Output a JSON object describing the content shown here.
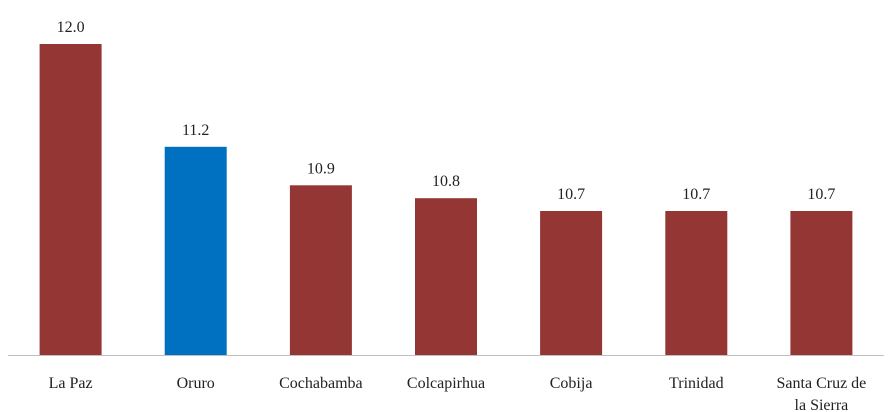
{
  "chart_data": {
    "type": "bar",
    "title": "",
    "xlabel": "",
    "ylabel": "",
    "categories": [
      "La Paz",
      "Oruro",
      "Cochabamba",
      "Colcapirhua",
      "Cobija",
      "Trinidad",
      "Santa Cruz de la Sierra"
    ],
    "category_label_lines": [
      [
        "La Paz"
      ],
      [
        "Oruro"
      ],
      [
        "Cochabamba"
      ],
      [
        "Colcapirhua"
      ],
      [
        "Cobija"
      ],
      [
        "Trinidad"
      ],
      [
        "Santa Cruz de",
        "la Sierra"
      ]
    ],
    "values": [
      12.0,
      11.2,
      10.9,
      10.8,
      10.7,
      10.7,
      10.7
    ],
    "value_labels": [
      "12.0",
      "11.2",
      "10.9",
      "10.8",
      "10.7",
      "10.7",
      "10.7"
    ],
    "highlight_index": 1,
    "colors": {
      "bar": "#943634",
      "highlight": "#0070C0",
      "axis": "#BFBFBF",
      "text": "#222222"
    },
    "axis_visible": false,
    "grid": false,
    "legend": "none"
  }
}
